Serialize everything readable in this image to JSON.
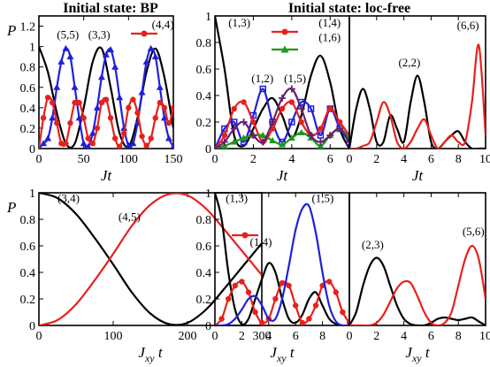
{
  "colors": {
    "black": "#000000",
    "red": "#e8201c",
    "blue": "#1f1fe0",
    "green": "#1a9a1a",
    "purple": "#6a1f6e"
  },
  "titles": {
    "left": "Initial state: BP",
    "right": "Initial state: loc-free"
  },
  "chart_data": [
    {
      "id": "top-left",
      "type": "line",
      "xlabel": "Jt",
      "ylabel": "P",
      "xlim": [
        0,
        150
      ],
      "ylim": [
        0,
        1.3
      ],
      "xticks": [
        "0",
        "50",
        "100",
        "150"
      ],
      "yticks": [
        "0",
        "0.2",
        "0.4",
        "0.6",
        "0.8",
        "1",
        "1.2"
      ],
      "series": [
        {
          "name": "(3,3)",
          "color": "black",
          "marker": "none",
          "x": [
            0,
            10,
            20,
            30,
            40,
            50,
            60,
            70,
            80,
            90,
            100,
            110,
            120,
            130,
            140,
            150
          ],
          "y": [
            1.0,
            0.75,
            0.35,
            0.05,
            0.05,
            0.4,
            0.85,
            0.98,
            0.6,
            0.15,
            0.02,
            0.3,
            0.75,
            0.98,
            0.7,
            0.2
          ]
        },
        {
          "name": "(5,5)",
          "color": "blue",
          "marker": "triangle",
          "x": [
            0,
            5,
            10,
            15,
            20,
            25,
            30,
            35,
            40,
            45,
            50,
            55,
            60,
            65,
            70,
            75,
            80,
            85,
            90,
            95,
            100,
            105,
            110,
            115,
            120,
            125,
            130,
            135,
            140,
            145,
            150
          ],
          "y": [
            0.0,
            0.05,
            0.1,
            0.3,
            0.6,
            0.85,
            0.98,
            0.9,
            0.6,
            0.3,
            0.05,
            0.02,
            0.15,
            0.4,
            0.7,
            0.92,
            0.97,
            0.8,
            0.5,
            0.2,
            0.03,
            0.05,
            0.25,
            0.55,
            0.85,
            0.98,
            0.9,
            0.6,
            0.3,
            0.1,
            0.02
          ]
        },
        {
          "name": "(4,4)",
          "color": "red",
          "marker": "circle",
          "x": [
            0,
            5,
            10,
            15,
            20,
            25,
            30,
            35,
            40,
            45,
            50,
            55,
            60,
            65,
            70,
            75,
            80,
            85,
            90,
            95,
            100,
            105,
            110,
            115,
            120,
            125,
            130,
            135,
            140,
            145,
            150
          ],
          "y": [
            0.0,
            0.3,
            0.5,
            0.45,
            0.25,
            0.05,
            0.05,
            0.25,
            0.45,
            0.45,
            0.3,
            0.1,
            0.05,
            0.2,
            0.45,
            0.48,
            0.3,
            0.1,
            0.02,
            0.15,
            0.4,
            0.48,
            0.35,
            0.12,
            0.03,
            0.1,
            0.3,
            0.45,
            0.4,
            0.25,
            0.4
          ]
        }
      ],
      "annotations": [
        "(5,5)",
        "(3,3)",
        "(4,4)"
      ]
    },
    {
      "id": "top-mid",
      "type": "line",
      "xlabel": "Jt",
      "ylabel": "",
      "xlim": [
        0,
        7
      ],
      "ylim": [
        0,
        1.0
      ],
      "xticks": [
        "0",
        "2",
        "4",
        "6"
      ],
      "yticks": [
        "0",
        "0.2",
        "0.4",
        "0.6",
        "0.8",
        "1"
      ],
      "series": [
        {
          "name": "(1,3)",
          "color": "black",
          "marker": "none",
          "x": [
            0,
            0.5,
            1,
            1.5,
            2,
            2.5,
            3,
            3.5,
            4,
            4.5,
            5,
            5.5,
            6,
            6.5,
            7
          ],
          "y": [
            1.0,
            0.6,
            0.1,
            0.02,
            0.15,
            0.3,
            0.38,
            0.25,
            0.08,
            0.25,
            0.55,
            0.7,
            0.5,
            0.15,
            0.0
          ]
        },
        {
          "name": "(1,2)",
          "color": "blue",
          "marker": "square",
          "x": [
            0,
            0.5,
            1,
            1.5,
            2,
            2.5,
            3,
            3.5,
            4,
            4.5,
            5,
            5.5,
            6,
            6.5,
            7
          ],
          "y": [
            0.0,
            0.15,
            0.2,
            0.05,
            0.25,
            0.45,
            0.2,
            0.05,
            0.2,
            0.35,
            0.3,
            0.1,
            0.3,
            0.15,
            0.05
          ]
        },
        {
          "name": "(1,4)",
          "color": "red",
          "marker": "circle",
          "x": [
            0,
            0.5,
            1,
            1.5,
            2,
            2.5,
            3,
            3.5,
            4,
            4.5,
            5,
            5.5,
            6,
            6.5,
            7
          ],
          "y": [
            0.0,
            0.1,
            0.3,
            0.35,
            0.2,
            0.05,
            0.15,
            0.3,
            0.35,
            0.2,
            0.1,
            0.15,
            0.3,
            0.2,
            0.1
          ]
        },
        {
          "name": "(1,6)",
          "color": "green",
          "marker": "triangle",
          "x": [
            0,
            0.5,
            1,
            1.5,
            2,
            2.5,
            3,
            3.5,
            4,
            4.5,
            5,
            5.5,
            6,
            6.5,
            7
          ],
          "y": [
            0.0,
            0.02,
            0.05,
            0.08,
            0.1,
            0.1,
            0.06,
            0.03,
            0.08,
            0.12,
            0.08,
            0.02,
            0.1,
            0.15,
            0.08
          ]
        },
        {
          "name": "(1,5)",
          "color": "purple",
          "marker": "plus",
          "x": [
            0,
            0.5,
            1,
            1.5,
            2,
            2.5,
            3,
            3.5,
            4,
            4.5,
            5,
            5.5,
            6,
            6.5,
            7
          ],
          "y": [
            0.0,
            0.05,
            0.15,
            0.2,
            0.1,
            0.05,
            0.2,
            0.38,
            0.45,
            0.3,
            0.1,
            0.05,
            0.1,
            0.15,
            0.05
          ]
        }
      ],
      "annotations": [
        "(1,3)",
        "(1,2)",
        "(1,5)",
        "(1,4)",
        "(1,6)"
      ]
    },
    {
      "id": "top-right",
      "type": "line",
      "xlabel": "Jt",
      "ylabel": "",
      "xlim": [
        0,
        10
      ],
      "ylim": [
        0,
        1.0
      ],
      "xticks": [
        "0",
        "2",
        "4",
        "6",
        "8",
        "10"
      ],
      "yticks": [],
      "series": [
        {
          "name": "(2,2)",
          "color": "black",
          "marker": "none",
          "x": [
            0,
            0.5,
            1,
            1.5,
            2,
            2.5,
            3,
            3.5,
            4,
            4.5,
            5,
            5.5,
            6,
            6.5,
            7,
            7.5,
            8,
            8.5,
            9,
            9.5,
            10
          ],
          "y": [
            0.0,
            0.3,
            0.45,
            0.3,
            0.05,
            0.05,
            0.25,
            0.15,
            0.05,
            0.35,
            0.55,
            0.35,
            0.05,
            0.0,
            0.05,
            0.1,
            0.13,
            0.05,
            0.0,
            0.0,
            0.0
          ]
        },
        {
          "name": "(6,6)",
          "color": "red",
          "marker": "none",
          "x": [
            0,
            0.5,
            1,
            1.5,
            2,
            2.5,
            3,
            3.5,
            4,
            4.5,
            5,
            5.5,
            6,
            6.5,
            7,
            7.5,
            8,
            8.5,
            9,
            9.5,
            10
          ],
          "y": [
            0.0,
            0.0,
            0.02,
            0.05,
            0.2,
            0.35,
            0.25,
            0.05,
            0.0,
            0.05,
            0.15,
            0.22,
            0.1,
            0.0,
            0.05,
            0.1,
            0.05,
            0.05,
            0.35,
            0.78,
            0.1
          ]
        }
      ],
      "annotations": [
        "(2,2)",
        "(6,6)"
      ]
    },
    {
      "id": "bottom-left",
      "type": "line",
      "xlabel": "Jxy t",
      "ylabel": "P",
      "xlim": [
        0,
        300
      ],
      "ylim": [
        0,
        1.0
      ],
      "xticks": [
        "0",
        "100",
        "200",
        "300"
      ],
      "yticks": [
        "0",
        "0.2",
        "0.4",
        "0.6",
        "0.8",
        "1"
      ],
      "series": [
        {
          "name": "(3,4)",
          "color": "black",
          "marker": "none",
          "x": [
            0,
            25,
            50,
            75,
            100,
            125,
            150,
            175,
            200,
            225,
            250,
            275,
            300
          ],
          "y": [
            1.0,
            0.96,
            0.84,
            0.66,
            0.46,
            0.25,
            0.09,
            0.01,
            0.02,
            0.12,
            0.28,
            0.45,
            0.62
          ]
        },
        {
          "name": "(4,5)",
          "color": "red",
          "marker": "none",
          "x": [
            0,
            25,
            50,
            75,
            100,
            125,
            150,
            175,
            200,
            225,
            250,
            275,
            300
          ],
          "y": [
            0.0,
            0.04,
            0.16,
            0.34,
            0.54,
            0.75,
            0.91,
            0.99,
            0.98,
            0.88,
            0.72,
            0.55,
            0.38
          ]
        }
      ],
      "annotations": [
        "(3,4)",
        "(4,5)"
      ]
    },
    {
      "id": "bottom-mid",
      "type": "line",
      "xlabel": "Jxy t",
      "ylabel": "",
      "xlim": [
        0,
        10
      ],
      "ylim": [
        0,
        1.0
      ],
      "xticks": [
        "0",
        "2",
        "4",
        "6",
        "8"
      ],
      "yticks": [
        "0",
        "0.2",
        "0.4",
        "0.6",
        "0.8",
        "1"
      ],
      "series": [
        {
          "name": "(1,3)",
          "color": "black",
          "marker": "none",
          "x": [
            0,
            0.5,
            1,
            1.5,
            2,
            2.5,
            3,
            3.5,
            4,
            4.5,
            5,
            5.5,
            6,
            6.5,
            7,
            7.5,
            8,
            8.5,
            9,
            9.5,
            10
          ],
          "y": [
            1.0,
            0.8,
            0.4,
            0.12,
            0.01,
            0.05,
            0.2,
            0.35,
            0.47,
            0.4,
            0.2,
            0.05,
            0.02,
            0.08,
            0.2,
            0.25,
            0.15,
            0.05,
            0.01,
            0.0,
            0.0
          ]
        },
        {
          "name": "(1,4)",
          "color": "red",
          "marker": "circle",
          "x": [
            0,
            0.5,
            1,
            1.5,
            2,
            2.5,
            3,
            3.5,
            4,
            4.5,
            5,
            5.5,
            6,
            6.5,
            7,
            7.5,
            8,
            8.5,
            9,
            9.5,
            10
          ],
          "y": [
            0.0,
            0.05,
            0.2,
            0.3,
            0.33,
            0.25,
            0.1,
            0.02,
            0.05,
            0.2,
            0.32,
            0.3,
            0.15,
            0.02,
            0.05,
            0.15,
            0.3,
            0.33,
            0.25,
            0.1,
            0.02
          ]
        },
        {
          "name": "(1,5)",
          "color": "blue",
          "marker": "none",
          "x": [
            0,
            0.5,
            1,
            1.5,
            2,
            2.5,
            3,
            3.5,
            4,
            4.5,
            5,
            5.5,
            6,
            6.5,
            7,
            7.5,
            8,
            8.5,
            9,
            9.5,
            10
          ],
          "y": [
            0.0,
            0.0,
            0.01,
            0.05,
            0.12,
            0.2,
            0.22,
            0.15,
            0.05,
            0.05,
            0.2,
            0.45,
            0.72,
            0.88,
            0.9,
            0.7,
            0.4,
            0.15,
            0.03,
            0.0,
            0.0
          ]
        }
      ],
      "annotations": [
        "(1,3)",
        "(1,4)",
        "(1,5)"
      ]
    },
    {
      "id": "bottom-right",
      "type": "line",
      "xlabel": "Jxy t",
      "ylabel": "",
      "xlim": [
        0,
        10
      ],
      "ylim": [
        0,
        1.0
      ],
      "xticks": [
        "0",
        "2",
        "4",
        "6",
        "8",
        "10"
      ],
      "yticks": [],
      "series": [
        {
          "name": "(2,3)",
          "color": "black",
          "marker": "none",
          "x": [
            0,
            0.5,
            1,
            1.5,
            2,
            2.5,
            3,
            3.5,
            4,
            4.5,
            5,
            5.5,
            6,
            6.5,
            7,
            7.5,
            8,
            8.5,
            9,
            9.5,
            10
          ],
          "y": [
            0.0,
            0.1,
            0.3,
            0.45,
            0.51,
            0.45,
            0.3,
            0.15,
            0.05,
            0.01,
            0.0,
            0.0,
            0.02,
            0.05,
            0.06,
            0.05,
            0.04,
            0.05,
            0.06,
            0.03,
            0.0
          ]
        },
        {
          "name": "(5,6)",
          "color": "red",
          "marker": "none",
          "x": [
            0,
            0.5,
            1,
            1.5,
            2,
            2.5,
            3,
            3.5,
            4,
            4.5,
            5,
            5.5,
            6,
            6.5,
            7,
            7.5,
            8,
            8.5,
            9,
            9.5,
            10
          ],
          "y": [
            0.0,
            0.0,
            0.0,
            0.0,
            0.02,
            0.08,
            0.18,
            0.28,
            0.33,
            0.32,
            0.22,
            0.1,
            0.02,
            0.0,
            0.02,
            0.1,
            0.3,
            0.5,
            0.6,
            0.5,
            0.2
          ]
        }
      ],
      "annotations": [
        "(2,3)",
        "(5,6)"
      ]
    }
  ]
}
